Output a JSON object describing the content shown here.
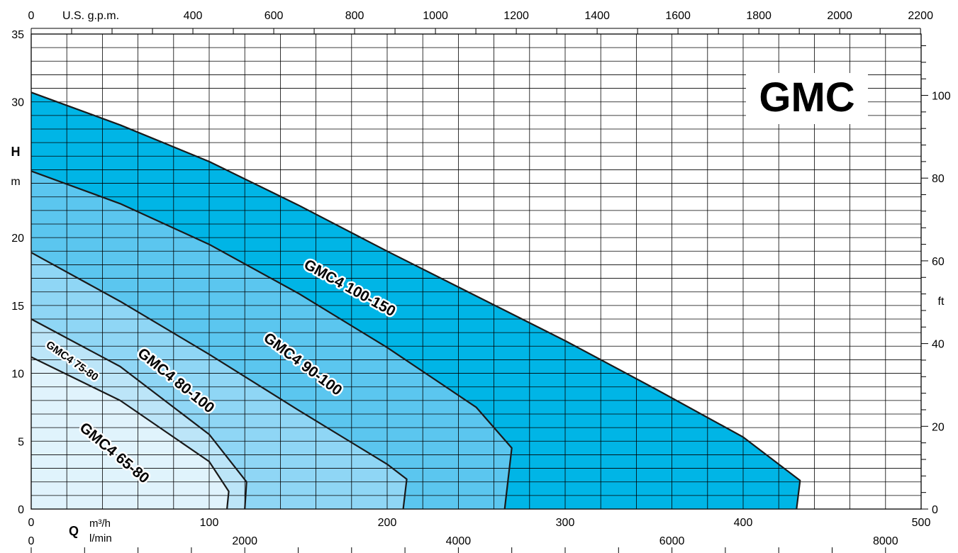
{
  "chart_data": {
    "type": "area",
    "title": "GMC",
    "ylabel_symbol": "H",
    "ylabel_unit": "m",
    "ylabel_right_unit": "ft",
    "xlabel_symbol": "Q",
    "xlabel_unit_m3h": "m³/h",
    "xlabel_unit_lmin": "l/min",
    "xlabel_top_unit": "U.S. g.p.m.",
    "xlim_m3h": [
      0,
      500
    ],
    "ylim_m": [
      0,
      35
    ],
    "grid": true,
    "axes": {
      "bottom_m3h_ticks": [
        "0",
        "100",
        "200",
        "300",
        "400",
        "500"
      ],
      "bottom_lmin_ticks": [
        "0",
        "2000",
        "4000",
        "6000",
        "8000"
      ],
      "top_gpm_ticks": [
        "0",
        "400",
        "600",
        "800",
        "1000",
        "1200",
        "1400",
        "1600",
        "1800",
        "2000",
        "2200"
      ],
      "left_m_ticks": [
        "0",
        "5",
        "10",
        "15",
        "20",
        "30",
        "35"
      ],
      "right_ft_ticks": [
        "0",
        "20",
        "40",
        "60",
        "80",
        "100"
      ]
    },
    "series": [
      {
        "name": "GMC4 100-150",
        "color": "#00b5e6",
        "x": [
          0,
          50,
          100,
          150,
          200,
          250,
          300,
          350,
          400,
          432,
          430
        ],
        "y": [
          30.7,
          28.3,
          25.6,
          22.4,
          19.0,
          15.7,
          12.4,
          8.9,
          5.3,
          2.1,
          0
        ]
      },
      {
        "name": "GMC4 90-100",
        "color": "#5bc6ef",
        "x": [
          0,
          50,
          100,
          150,
          200,
          250,
          270,
          266
        ],
        "y": [
          24.9,
          22.5,
          19.5,
          15.9,
          11.9,
          7.5,
          4.5,
          0
        ]
      },
      {
        "name": "GMC4 80-100",
        "color": "#8fd6f5",
        "x": [
          0,
          50,
          100,
          150,
          200,
          211,
          209
        ],
        "y": [
          18.9,
          15.3,
          11.4,
          7.3,
          3.3,
          2.2,
          0
        ]
      },
      {
        "name": "GMC4 75-80",
        "color": "#bce5f8",
        "x": [
          0,
          50,
          100,
          121,
          120
        ],
        "y": [
          14.0,
          10.5,
          5.5,
          2.0,
          0
        ]
      },
      {
        "name": "GMC4 65-80",
        "color": "#e0f3fc",
        "x": [
          0,
          50,
          100,
          111,
          110
        ],
        "y": [
          11.2,
          8.0,
          3.5,
          1.3,
          0
        ]
      }
    ]
  }
}
